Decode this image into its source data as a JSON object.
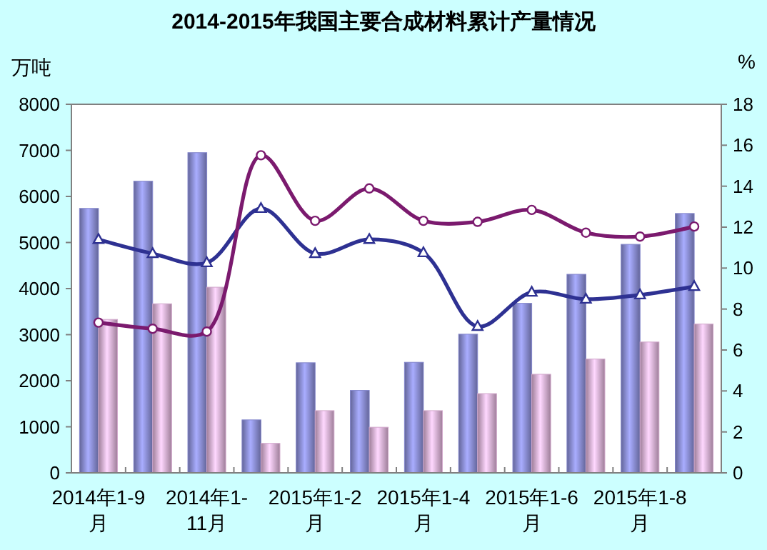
{
  "chart_data": {
    "type": "bar",
    "title": "2014-2015年我国主要合成材料累计产量情况",
    "ylabel": "万吨",
    "y2label": "%",
    "categories": [
      "2014年1-9月",
      null,
      "2014年1-11月",
      null,
      "2015年1-2月",
      null,
      "2015年1-4月",
      null,
      "2015年1-6月",
      null,
      "2015年1-8月",
      null
    ],
    "series": [
      {
        "color": "#8487cc",
        "values": [
          5740,
          6330,
          6950,
          1150,
          2390,
          1790,
          2400,
          3010,
          3680,
          4310,
          4960,
          5630
        ]
      },
      {
        "color": "#d2a8cc",
        "values": [
          3330,
          3670,
          4030,
          640,
          1350,
          990,
          1350,
          1720,
          2140,
          2470,
          2840,
          3230
        ]
      },
      {
        "type": "line",
        "axis": "y2",
        "color": "#2e3192",
        "marker": "triangle",
        "values": [
          11.4,
          10.71,
          10.26,
          12.91,
          10.71,
          11.4,
          10.75,
          7.15,
          8.82,
          8.48,
          8.69,
          9.1
        ]
      },
      {
        "type": "line",
        "axis": "y2",
        "color": "#7b1a6e",
        "marker": "circle",
        "values": [
          7.34,
          7.04,
          6.9,
          15.51,
          12.31,
          13.89,
          12.31,
          12.26,
          12.84,
          11.73,
          11.54,
          12.03
        ]
      }
    ],
    "ylim": [
      0,
      8000
    ],
    "yticks": [
      0,
      1000,
      2000,
      3000,
      4000,
      5000,
      6000,
      7000,
      8000
    ],
    "y2lim": [
      0,
      18
    ],
    "y2ticks": [
      0,
      2,
      4,
      6,
      8,
      10,
      12,
      14,
      16,
      18
    ],
    "grid": false
  }
}
